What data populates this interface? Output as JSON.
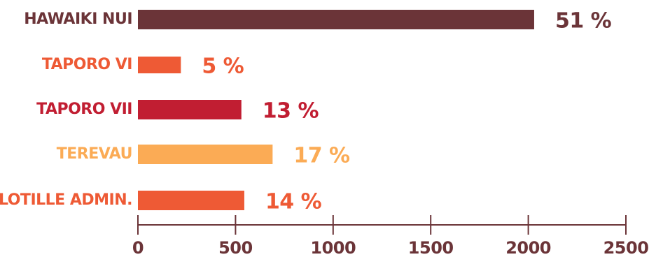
{
  "chart_data": {
    "type": "bar",
    "orientation": "horizontal",
    "categories": [
      "HAWAIKI NUI",
      "TAPORO VI",
      "TAPORO VII",
      "TEREVAU",
      "FLOTILLE ADMIN."
    ],
    "values": [
      2030,
      220,
      530,
      690,
      545
    ],
    "data_labels": [
      "51 %",
      "5 %",
      "13 %",
      "17 %",
      "14 %"
    ],
    "colors": [
      "#6b3438",
      "#ee5a35",
      "#c11e32",
      "#fbab55",
      "#ee5a35"
    ],
    "xlim": [
      0,
      2500
    ],
    "xticks": [
      0,
      500,
      1000,
      1500,
      2000,
      2500
    ],
    "xtick_labels": [
      "0",
      "500",
      "1000",
      "1500",
      "2000",
      "2500"
    ],
    "axis_color": "#6b3438",
    "grid": false,
    "title": "",
    "xlabel": "",
    "ylabel": ""
  }
}
